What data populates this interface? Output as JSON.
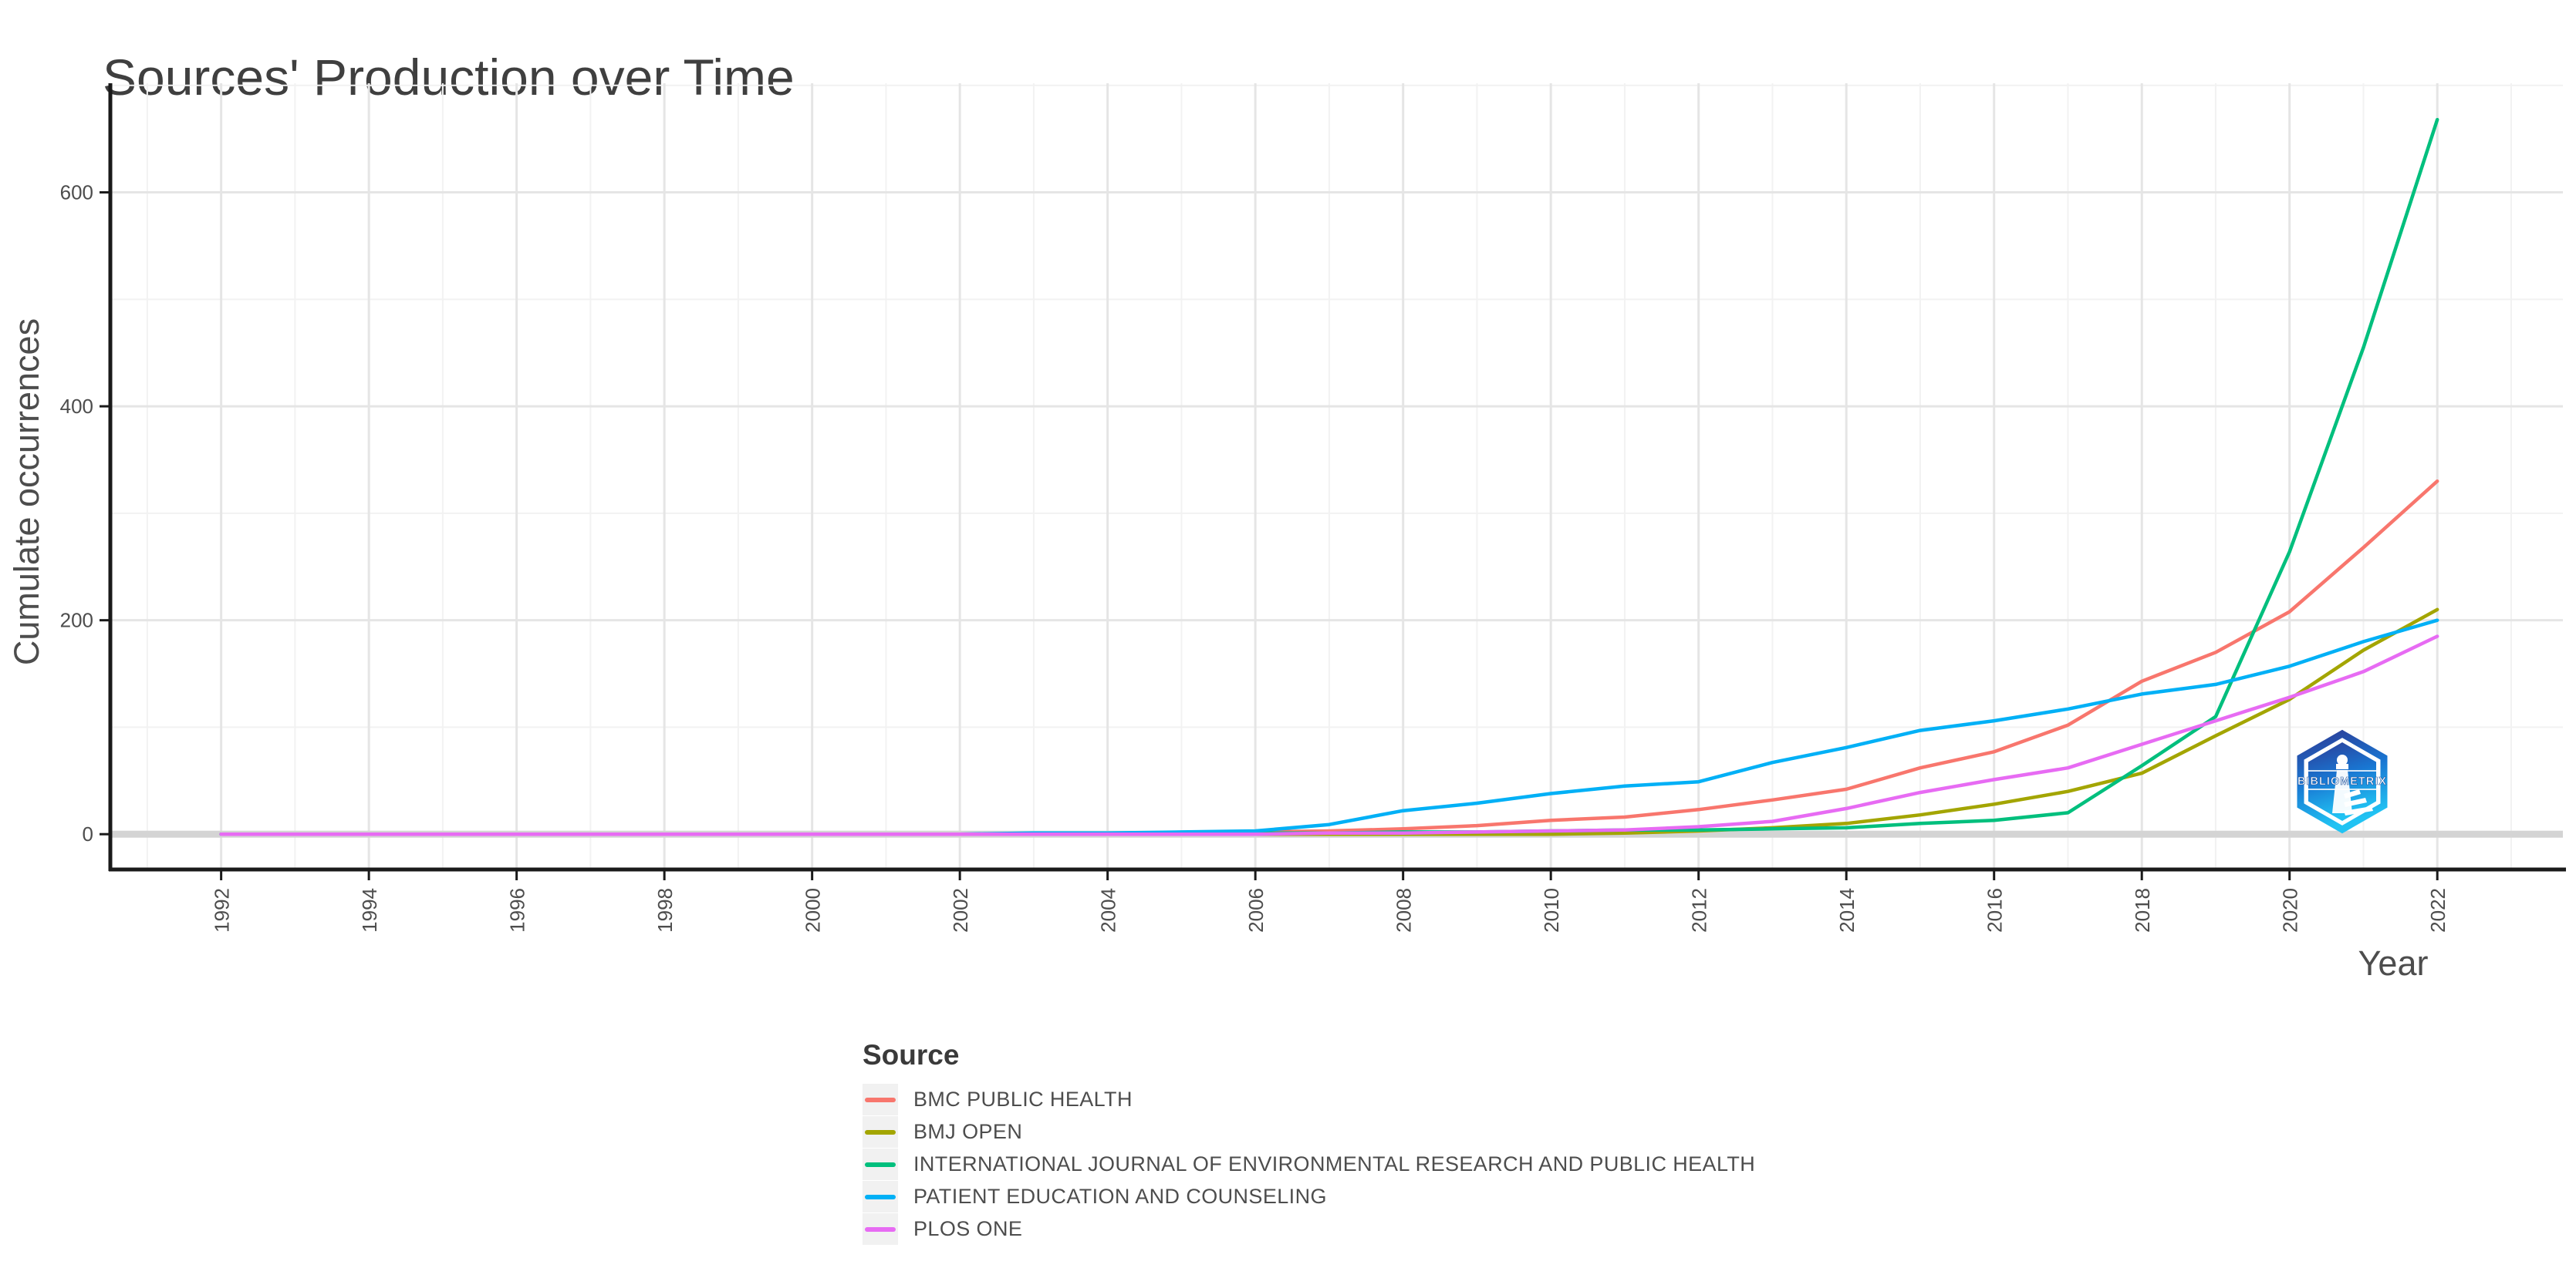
{
  "chart_data": {
    "type": "line",
    "title": "Sources' Production over Time",
    "xlabel": "Year",
    "ylabel": "Cumulate occurrences",
    "legend_title": "Source",
    "watermark_text": "BIBLIOMETRIX",
    "grid": true,
    "legend_position": "bottom-center",
    "x": [
      1992,
      1993,
      1994,
      1995,
      1996,
      1997,
      1998,
      1999,
      2000,
      2001,
      2002,
      2003,
      2004,
      2005,
      2006,
      2007,
      2008,
      2009,
      2010,
      2011,
      2012,
      2013,
      2014,
      2015,
      2016,
      2017,
      2018,
      2019,
      2020,
      2021,
      2022
    ],
    "x_ticks": [
      1992,
      1994,
      1996,
      1998,
      2000,
      2002,
      2004,
      2006,
      2008,
      2010,
      2012,
      2014,
      2016,
      2018,
      2020,
      2022
    ],
    "y_ticks": [
      0,
      200,
      400,
      600
    ],
    "y_minor_ticks": [
      100,
      300,
      500,
      700
    ],
    "xlim": [
      1990.5,
      2023.7
    ],
    "ylim": [
      -33,
      702
    ],
    "series": [
      {
        "name": "BMC PUBLIC HEALTH",
        "color": "#F8766D",
        "values": [
          0,
          0,
          0,
          0,
          0,
          0,
          0,
          0,
          0,
          0,
          0,
          0,
          0,
          1,
          2,
          3,
          5,
          8,
          13,
          16,
          23,
          32,
          42,
          62,
          77,
          102,
          143,
          170,
          208,
          268,
          330
        ]
      },
      {
        "name": "BMJ OPEN",
        "color": "#A3A500",
        "values": [
          0,
          0,
          0,
          0,
          0,
          0,
          0,
          0,
          0,
          0,
          0,
          0,
          0,
          0,
          0,
          0,
          0,
          0,
          0,
          1,
          3,
          6,
          10,
          18,
          28,
          40,
          57,
          92,
          126,
          172,
          210
        ]
      },
      {
        "name": "INTERNATIONAL JOURNAL OF ENVIRONMENTAL RESEARCH AND PUBLIC HEALTH",
        "color": "#00BF7D",
        "values": [
          0,
          0,
          0,
          0,
          0,
          0,
          0,
          0,
          0,
          0,
          0,
          0,
          0,
          0,
          1,
          1,
          2,
          2,
          3,
          4,
          4,
          5,
          6,
          10,
          13,
          20,
          64,
          110,
          264,
          455,
          668
        ]
      },
      {
        "name": "PATIENT EDUCATION AND COUNSELING",
        "color": "#00B0F6",
        "values": [
          0,
          0,
          0,
          0,
          0,
          0,
          0,
          0,
          0,
          0,
          0,
          1,
          1,
          2,
          3,
          9,
          22,
          29,
          38,
          45,
          49,
          67,
          81,
          97,
          106,
          117,
          131,
          140,
          157,
          180,
          200
        ]
      },
      {
        "name": "PLOS ONE",
        "color": "#E76BF3",
        "values": [
          0,
          0,
          0,
          0,
          0,
          0,
          0,
          0,
          0,
          0,
          0,
          0,
          0,
          0,
          0,
          1,
          1,
          2,
          3,
          4,
          7,
          12,
          24,
          39,
          51,
          62,
          84,
          106,
          128,
          152,
          185
        ]
      }
    ]
  },
  "colors": {
    "title_text": "#3f3f3f",
    "axis_text": "#4d4d4d",
    "axis_line": "#1a1a1a",
    "grid_major": "#e5e5e5",
    "grid_minor": "#f2f2f2",
    "zero_band": "#d4d4d4",
    "legend_key_bg": "#f1f1f1",
    "logo_dark": "#2d3c96",
    "logo_mid": "#1976d2",
    "logo_light": "#21c3f3"
  }
}
